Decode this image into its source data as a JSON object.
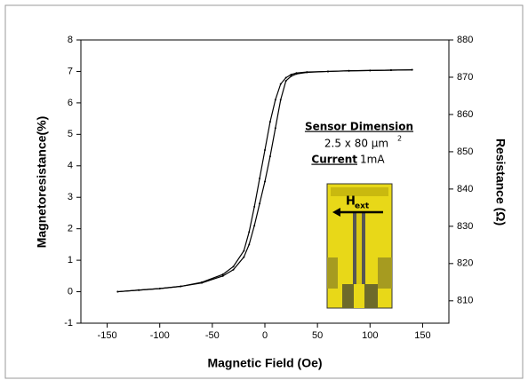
{
  "chart_data": {
    "type": "line",
    "x_label": "Magnetic Field (Oe)",
    "y_label": "Magnetoresistance(%)",
    "y2_label": "Resistance (Ω)",
    "x": [
      -140,
      -120,
      -100,
      -80,
      -60,
      -40,
      -30,
      -20,
      -15,
      -10,
      -5,
      0,
      5,
      10,
      15,
      20,
      25,
      30,
      40,
      60,
      80,
      100,
      120,
      140
    ],
    "series": [
      {
        "color": "#000000",
        "values": [
          0,
          0.05,
          0.1,
          0.17,
          0.28,
          0.5,
          0.7,
          1.1,
          1.5,
          2.1,
          2.8,
          3.5,
          4.3,
          5.2,
          6.1,
          6.7,
          6.85,
          6.92,
          6.97,
          7.0,
          7.02,
          7.03,
          7.04,
          7.05
        ]
      },
      {
        "color": "#000000",
        "values": [
          0,
          0.05,
          0.1,
          0.17,
          0.3,
          0.55,
          0.8,
          1.3,
          1.9,
          2.7,
          3.6,
          4.5,
          5.4,
          6.1,
          6.6,
          6.8,
          6.9,
          6.95,
          6.98,
          7.0,
          7.02,
          7.03,
          7.04,
          7.05
        ]
      }
    ],
    "xlim": [
      -175,
      175
    ],
    "xticks": [
      -150,
      -100,
      -50,
      0,
      50,
      100,
      150
    ],
    "ylim": [
      -1,
      8
    ],
    "yticks": [
      -1,
      0,
      1,
      2,
      3,
      4,
      5,
      6,
      7,
      8
    ],
    "y2lim": [
      804,
      880
    ],
    "y2ticks": [
      810,
      820,
      830,
      840,
      850,
      860,
      870,
      880
    ],
    "annotations": {
      "title": "Sensor Dimension",
      "size": "2.5 x 80 μm",
      "size_sup": "2",
      "current_label": "Current",
      "current_value": "1mA",
      "field": "H",
      "field_sub": "ext"
    }
  }
}
